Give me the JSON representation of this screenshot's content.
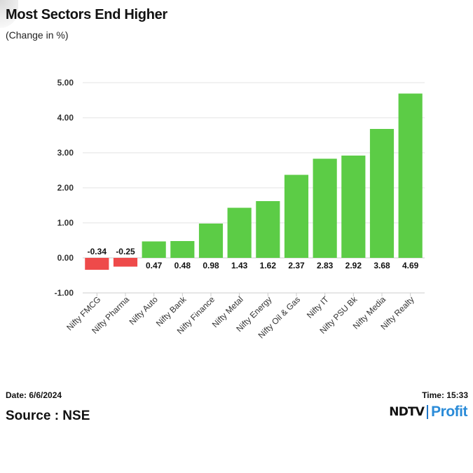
{
  "header": {
    "title": "Most Sectors End Higher",
    "subtitle": "(Change in %)"
  },
  "footer": {
    "date": "Date: 6/6/2024",
    "time": "Time: 15:33",
    "source": "Source : NSE",
    "logo_brand": "NDTV",
    "logo_product": "Profit"
  },
  "colors": {
    "positive": "#5ccc46",
    "negative": "#ee4a4a",
    "grid": "#e3e3e3",
    "axis": "#cccccc"
  },
  "chart_data": {
    "type": "bar",
    "title": "Most Sectors End Higher",
    "subtitle": "(Change in %)",
    "xlabel": "",
    "ylabel": "",
    "ylim": [
      -1,
      5
    ],
    "yticks": [
      -1,
      0,
      1,
      2,
      3,
      4,
      5
    ],
    "ytick_labels": [
      "-1.00",
      "0.00",
      "1.00",
      "2.00",
      "3.00",
      "4.00",
      "5.00"
    ],
    "grid": true,
    "legend": "none",
    "categories": [
      "Nifty FMCG",
      "Nifty Pharma",
      "Nifty Auto",
      "Nifty Bank",
      "Nifty Finance",
      "Nifty Metal",
      "Nifty Energy",
      "Nifty Oil & Gas",
      "Nifty IT",
      "Nifty PSU Bk",
      "Nifty Media",
      "Nifty Realty"
    ],
    "values": [
      -0.34,
      -0.25,
      0.47,
      0.48,
      0.98,
      1.43,
      1.62,
      2.37,
      2.83,
      2.92,
      3.68,
      4.69
    ],
    "value_labels": [
      "-0.34",
      "-0.25",
      "0.47",
      "0.48",
      "0.98",
      "1.43",
      "1.62",
      "2.37",
      "2.83",
      "2.92",
      "3.68",
      "4.69"
    ]
  }
}
